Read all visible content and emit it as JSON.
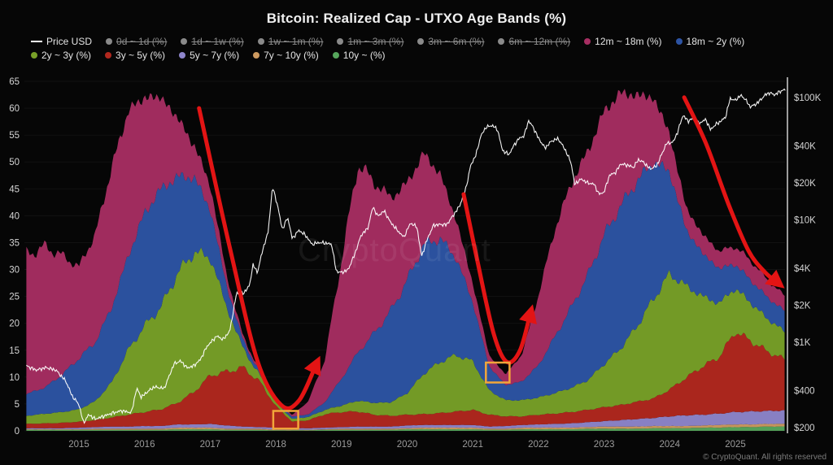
{
  "title": "Bitcoin: Realized Cap - UTXO Age Bands (%)",
  "watermark": "CryptoQuant",
  "footer": "© CryptoQuant. All rights reserved",
  "legend": {
    "rows": [
      [
        {
          "label": "Price USD",
          "type": "line",
          "color": "#ffffff",
          "disabled": false
        },
        {
          "label": "0d ~ 1d (%)",
          "type": "dot",
          "color": "#8a8a8a",
          "disabled": true
        },
        {
          "label": "1d ~ 1w (%)",
          "type": "dot",
          "color": "#8a8a8a",
          "disabled": true
        },
        {
          "label": "1w ~ 1m (%)",
          "type": "dot",
          "color": "#8a8a8a",
          "disabled": true
        },
        {
          "label": "1m ~ 3m (%)",
          "type": "dot",
          "color": "#8a8a8a",
          "disabled": true
        },
        {
          "label": "3m ~ 6m (%)",
          "type": "dot",
          "color": "#8a8a8a",
          "disabled": true
        },
        {
          "label": "6m ~ 12m (%)",
          "type": "dot",
          "color": "#8a8a8a",
          "disabled": true
        },
        {
          "label": "12m ~ 18m (%)",
          "type": "dot",
          "color": "#a72e62",
          "disabled": false
        },
        {
          "label": "18m ~ 2y (%)",
          "type": "dot",
          "color": "#2d54a4",
          "disabled": false
        }
      ],
      [
        {
          "label": "2y ~ 3y (%)",
          "type": "dot",
          "color": "#78a028",
          "disabled": false
        },
        {
          "label": "3y ~ 5y (%)",
          "type": "dot",
          "color": "#b1281e",
          "disabled": false
        },
        {
          "label": "5y ~ 7y (%)",
          "type": "dot",
          "color": "#8e85cb",
          "disabled": false
        },
        {
          "label": "7y ~ 10y (%)",
          "type": "dot",
          "color": "#cd9a60",
          "disabled": false
        },
        {
          "label": "10y ~ (%)",
          "type": "dot",
          "color": "#56a65c",
          "disabled": false
        }
      ]
    ]
  },
  "chart_data": {
    "type": "area",
    "stacked": true,
    "title": "Bitcoin: Realized Cap - UTXO Age Bands (%)",
    "percent_axis": {
      "min": 0,
      "max": 65,
      "ticks": [
        0,
        5,
        10,
        15,
        20,
        25,
        30,
        35,
        40,
        45,
        50,
        55,
        60,
        65
      ]
    },
    "price_axis": {
      "scale": "log",
      "ticks": [
        {
          "label": "$200",
          "value": 200
        },
        {
          "label": "$400",
          "value": 400
        },
        {
          "label": "$1K",
          "value": 1000
        },
        {
          "label": "$2K",
          "value": 2000
        },
        {
          "label": "$4K",
          "value": 4000
        },
        {
          "label": "$10K",
          "value": 10000
        },
        {
          "label": "$20K",
          "value": 20000
        },
        {
          "label": "$40K",
          "value": 40000
        },
        {
          "label": "$100K",
          "value": 100000
        }
      ]
    },
    "x_axis": {
      "min": 2014.2,
      "max": 2025.8,
      "ticks": [
        2015,
        2016,
        2017,
        2018,
        2019,
        2020,
        2021,
        2022,
        2023,
        2024,
        2025
      ]
    },
    "x": [
      2014.2,
      2014.5,
      2014.75,
      2015.0,
      2015.25,
      2015.5,
      2015.75,
      2016.0,
      2016.25,
      2016.5,
      2016.75,
      2017.0,
      2017.25,
      2017.5,
      2017.75,
      2018.0,
      2018.25,
      2018.5,
      2018.75,
      2019.0,
      2019.25,
      2019.5,
      2019.75,
      2020.0,
      2020.25,
      2020.5,
      2020.75,
      2021.0,
      2021.25,
      2021.5,
      2021.75,
      2022.0,
      2022.25,
      2022.5,
      2022.75,
      2023.0,
      2023.25,
      2023.5,
      2023.75,
      2024.0,
      2024.25,
      2024.5,
      2024.75,
      2025.0,
      2025.25,
      2025.5,
      2025.75
    ],
    "series": [
      {
        "name": "10y ~ (%)",
        "color": "#56a65c",
        "values": [
          0.2,
          0.2,
          0.2,
          0.2,
          0.2,
          0.2,
          0.2,
          0.2,
          0.2,
          0.3,
          0.3,
          0.3,
          0.2,
          0.2,
          0.2,
          0.1,
          0.1,
          0.1,
          0.2,
          0.2,
          0.2,
          0.2,
          0.2,
          0.3,
          0.3,
          0.3,
          0.3,
          0.3,
          0.2,
          0.2,
          0.3,
          0.3,
          0.3,
          0.3,
          0.4,
          0.4,
          0.4,
          0.4,
          0.5,
          0.5,
          0.5,
          0.6,
          0.6,
          0.7,
          0.7,
          0.8,
          0.8
        ]
      },
      {
        "name": "7y ~ 10y (%)",
        "color": "#cd9a60",
        "values": [
          0.1,
          0.1,
          0.1,
          0.1,
          0.2,
          0.2,
          0.2,
          0.2,
          0.2,
          0.3,
          0.3,
          0.3,
          0.2,
          0.2,
          0.2,
          0.1,
          0.1,
          0.1,
          0.1,
          0.2,
          0.2,
          0.2,
          0.2,
          0.2,
          0.3,
          0.3,
          0.3,
          0.3,
          0.2,
          0.2,
          0.3,
          0.3,
          0.3,
          0.3,
          0.3,
          0.4,
          0.4,
          0.4,
          0.4,
          0.4,
          0.4,
          0.4,
          0.5,
          0.5,
          0.5,
          0.5,
          0.5
        ]
      },
      {
        "name": "5y ~ 7y (%)",
        "color": "#8e85cb",
        "values": [
          0.2,
          0.2,
          0.2,
          0.3,
          0.3,
          0.4,
          0.4,
          0.5,
          0.5,
          0.6,
          0.6,
          0.7,
          0.6,
          0.4,
          0.3,
          0.4,
          0.3,
          0.3,
          0.3,
          0.3,
          0.4,
          0.4,
          0.4,
          0.5,
          0.5,
          0.5,
          0.5,
          0.5,
          0.4,
          0.5,
          0.5,
          0.6,
          0.7,
          0.8,
          0.9,
          1.0,
          1.2,
          1.4,
          1.5,
          1.8,
          2.0,
          2.0,
          2.1,
          2.3,
          2.4,
          2.4,
          2.5
        ]
      },
      {
        "name": "3y ~ 5y (%)",
        "color": "#b1281e",
        "values": [
          0.8,
          0.9,
          1.0,
          1.1,
          1.3,
          1.7,
          2.2,
          2.6,
          3.1,
          4.0,
          6.0,
          9.0,
          10.0,
          11.0,
          8.5,
          4.0,
          1.2,
          1.5,
          2.5,
          2.8,
          2.8,
          2.2,
          2.0,
          2.0,
          2.0,
          2.2,
          2.5,
          2.8,
          2.2,
          1.8,
          1.6,
          1.8,
          1.9,
          2.1,
          2.3,
          2.6,
          2.8,
          3.2,
          3.6,
          5.0,
          7.0,
          9.0,
          10.5,
          15.0,
          13.0,
          11.0,
          9.5
        ]
      },
      {
        "name": "2y ~ 3y (%)",
        "color": "#78a028",
        "values": [
          1.5,
          1.8,
          2.0,
          2.3,
          3.5,
          6.5,
          12.0,
          16.0,
          19.0,
          24.0,
          26.0,
          22.0,
          12.0,
          3.5,
          1.2,
          0.7,
          0.5,
          0.6,
          0.8,
          1.2,
          2.0,
          2.2,
          2.5,
          4.0,
          7.5,
          9.5,
          10.5,
          9.0,
          4.5,
          3.0,
          3.0,
          3.2,
          3.8,
          4.5,
          5.5,
          8.0,
          10.5,
          14.0,
          18.5,
          21.5,
          17.0,
          13.0,
          10.0,
          8.0,
          7.0,
          6.0,
          5.2
        ]
      },
      {
        "name": "18m ~ 2y (%)",
        "color": "#2d54a4",
        "values": [
          4.0,
          5.0,
          7.0,
          9.5,
          11.0,
          14.0,
          17.5,
          21.0,
          22.0,
          18.0,
          14.0,
          9.0,
          4.0,
          1.5,
          0.6,
          0.5,
          0.4,
          0.5,
          1.5,
          5.0,
          9.0,
          13.0,
          17.0,
          21.0,
          24.0,
          23.0,
          18.0,
          11.0,
          4.5,
          2.8,
          3.5,
          6.0,
          10.5,
          15.0,
          19.5,
          24.0,
          26.5,
          27.0,
          25.5,
          19.0,
          10.5,
          8.0,
          6.5,
          4.5,
          4.2,
          4.0,
          3.8
        ]
      },
      {
        "name": "12m ~ 18m (%)",
        "color": "#a72e62",
        "values": [
          26.0,
          26.0,
          22.0,
          17.0,
          20.0,
          26.0,
          27.0,
          21.5,
          17.0,
          11.0,
          6.0,
          4.5,
          2.0,
          0.7,
          0.4,
          0.4,
          0.3,
          2.5,
          8.0,
          22.0,
          35.0,
          28.0,
          21.0,
          18.0,
          17.0,
          12.0,
          7.0,
          3.5,
          2.0,
          2.0,
          5.0,
          13.0,
          20.0,
          23.0,
          23.0,
          23.0,
          21.0,
          16.0,
          12.0,
          7.0,
          4.0,
          3.5,
          3.2,
          3.3,
          3.6,
          3.2,
          2.8
        ]
      }
    ],
    "price_line": {
      "name": "Price USD",
      "color": "#ffffff",
      "scale": "log",
      "points": [
        [
          2014.2,
          640
        ],
        [
          2014.35,
          590
        ],
        [
          2014.5,
          620
        ],
        [
          2014.65,
          590
        ],
        [
          2014.8,
          480
        ],
        [
          2014.9,
          360
        ],
        [
          2015.0,
          310
        ],
        [
          2015.07,
          218
        ],
        [
          2015.15,
          255
        ],
        [
          2015.25,
          235
        ],
        [
          2015.35,
          245
        ],
        [
          2015.5,
          262
        ],
        [
          2015.65,
          275
        ],
        [
          2015.8,
          265
        ],
        [
          2015.88,
          420
        ],
        [
          2015.95,
          355
        ],
        [
          2016.05,
          395
        ],
        [
          2016.15,
          430
        ],
        [
          2016.3,
          418
        ],
        [
          2016.45,
          665
        ],
        [
          2016.55,
          700
        ],
        [
          2016.65,
          615
        ],
        [
          2016.75,
          640
        ],
        [
          2016.85,
          720
        ],
        [
          2016.95,
          920
        ],
        [
          2017.0,
          985
        ],
        [
          2017.1,
          1120
        ],
        [
          2017.2,
          1050
        ],
        [
          2017.3,
          1240
        ],
        [
          2017.4,
          2500
        ],
        [
          2017.5,
          2480
        ],
        [
          2017.6,
          2900
        ],
        [
          2017.65,
          4300
        ],
        [
          2017.72,
          3700
        ],
        [
          2017.8,
          5700
        ],
        [
          2017.88,
          7800
        ],
        [
          2017.95,
          18600
        ],
        [
          2018.02,
          13500
        ],
        [
          2018.1,
          8300
        ],
        [
          2018.18,
          10500
        ],
        [
          2018.25,
          7000
        ],
        [
          2018.35,
          8200
        ],
        [
          2018.45,
          7500
        ],
        [
          2018.55,
          6300
        ],
        [
          2018.65,
          6500
        ],
        [
          2018.75,
          6450
        ],
        [
          2018.85,
          6300
        ],
        [
          2018.92,
          3800
        ],
        [
          2019.0,
          3700
        ],
        [
          2019.1,
          3900
        ],
        [
          2019.2,
          5200
        ],
        [
          2019.3,
          7500
        ],
        [
          2019.4,
          8500
        ],
        [
          2019.48,
          12800
        ],
        [
          2019.55,
          10700
        ],
        [
          2019.65,
          11800
        ],
        [
          2019.75,
          9500
        ],
        [
          2019.85,
          8200
        ],
        [
          2019.95,
          7200
        ],
        [
          2020.05,
          9400
        ],
        [
          2020.15,
          8700
        ],
        [
          2020.22,
          5000
        ],
        [
          2020.3,
          6800
        ],
        [
          2020.4,
          9000
        ],
        [
          2020.5,
          9150
        ],
        [
          2020.6,
          9100
        ],
        [
          2020.7,
          10800
        ],
        [
          2020.8,
          13000
        ],
        [
          2020.9,
          18500
        ],
        [
          2020.97,
          28000
        ],
        [
          2021.05,
          34000
        ],
        [
          2021.12,
          48000
        ],
        [
          2021.2,
          57000
        ],
        [
          2021.3,
          59000
        ],
        [
          2021.38,
          54000
        ],
        [
          2021.45,
          37000
        ],
        [
          2021.55,
          34000
        ],
        [
          2021.62,
          40000
        ],
        [
          2021.7,
          46000
        ],
        [
          2021.78,
          48500
        ],
        [
          2021.85,
          64500
        ],
        [
          2021.92,
          57000
        ],
        [
          2022.0,
          46500
        ],
        [
          2022.1,
          38500
        ],
        [
          2022.2,
          44000
        ],
        [
          2022.3,
          46000
        ],
        [
          2022.4,
          38000
        ],
        [
          2022.5,
          29000
        ],
        [
          2022.55,
          19500
        ],
        [
          2022.65,
          21500
        ],
        [
          2022.75,
          20000
        ],
        [
          2022.85,
          19500
        ],
        [
          2022.92,
          16200
        ],
        [
          2023.0,
          16800
        ],
        [
          2023.08,
          23000
        ],
        [
          2023.18,
          24500
        ],
        [
          2023.25,
          28500
        ],
        [
          2023.35,
          28000
        ],
        [
          2023.45,
          26800
        ],
        [
          2023.52,
          31000
        ],
        [
          2023.6,
          29500
        ],
        [
          2023.7,
          26000
        ],
        [
          2023.8,
          27500
        ],
        [
          2023.88,
          34500
        ],
        [
          2023.95,
          42000
        ],
        [
          2024.05,
          43000
        ],
        [
          2024.12,
          52000
        ],
        [
          2024.2,
          71500
        ],
        [
          2024.28,
          64000
        ],
        [
          2024.35,
          67000
        ],
        [
          2024.45,
          61500
        ],
        [
          2024.55,
          66000
        ],
        [
          2024.62,
          54500
        ],
        [
          2024.7,
          60000
        ],
        [
          2024.78,
          64000
        ],
        [
          2024.85,
          69000
        ],
        [
          2024.92,
          98000
        ],
        [
          2025.0,
          94500
        ],
        [
          2025.08,
          104000
        ],
        [
          2025.15,
          97000
        ],
        [
          2025.22,
          84000
        ],
        [
          2025.3,
          87000
        ],
        [
          2025.38,
          95000
        ],
        [
          2025.45,
          104500
        ],
        [
          2025.52,
          109000
        ],
        [
          2025.6,
          105000
        ],
        [
          2025.68,
          112000
        ],
        [
          2025.76,
          116000
        ]
      ]
    }
  },
  "annotations": {
    "arrow_color": "#e31414",
    "box_color": "#f2a63a",
    "arrows": [
      {
        "points": [
          [
            2016.83,
            60
          ],
          [
            2017.3,
            34
          ],
          [
            2017.72,
            13
          ],
          [
            2018.08,
            4.8
          ],
          [
            2018.35,
            5.6
          ],
          [
            2018.62,
            12.5
          ]
        ]
      },
      {
        "points": [
          [
            2020.86,
            44
          ],
          [
            2021.08,
            31
          ],
          [
            2021.32,
            18
          ],
          [
            2021.52,
            12.8
          ],
          [
            2021.72,
            15
          ],
          [
            2021.88,
            22
          ]
        ]
      },
      {
        "points": [
          [
            2024.22,
            62
          ],
          [
            2024.55,
            53.5
          ],
          [
            2024.9,
            42
          ],
          [
            2025.2,
            33.5
          ],
          [
            2025.45,
            29.5
          ],
          [
            2025.65,
            27.5
          ]
        ]
      }
    ],
    "boxes": [
      {
        "t0": 2017.96,
        "t1": 2018.34,
        "v0": 0.4,
        "v1": 3.7
      },
      {
        "t0": 2021.2,
        "t1": 2021.56,
        "v0": 9.0,
        "v1": 12.7
      }
    ]
  }
}
